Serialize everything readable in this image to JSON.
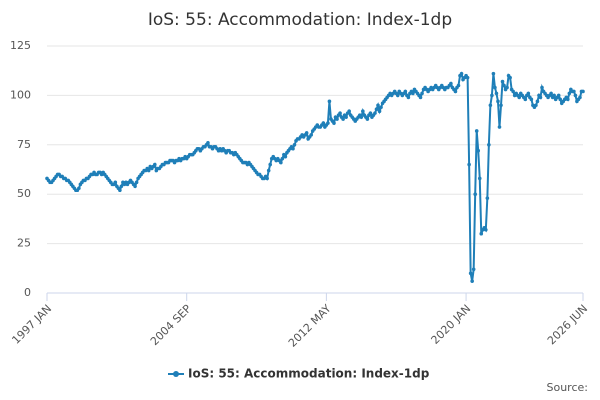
{
  "chart_data": {
    "type": "line",
    "title": "IoS: 55: Accommodation: Index-1dp",
    "categories": [
      "1997 JAN",
      null,
      null,
      null,
      null,
      null,
      null,
      null,
      null,
      null,
      null,
      null,
      null,
      null,
      null,
      null,
      null,
      null,
      null,
      null,
      null,
      null,
      null,
      null,
      null,
      null,
      null,
      null,
      null,
      null,
      null,
      null,
      null,
      null,
      null,
      null,
      null,
      null,
      null,
      null,
      null,
      null,
      null,
      null,
      null,
      null,
      null,
      null,
      null,
      null,
      null,
      null,
      null,
      null,
      null,
      null,
      null,
      null,
      null,
      null,
      null,
      null,
      null,
      null,
      null,
      null,
      null,
      null,
      null,
      null,
      null,
      null,
      null,
      null,
      null,
      null,
      null,
      null,
      null,
      null,
      null,
      null,
      null,
      null,
      null,
      null,
      null,
      null,
      null,
      null,
      null,
      null,
      "2004 SEP",
      null,
      null,
      null,
      null,
      null,
      null,
      null,
      null,
      null,
      null,
      null,
      null,
      null,
      null,
      null,
      null,
      null,
      null,
      null,
      null,
      null,
      null,
      null,
      null,
      null,
      null,
      null,
      null,
      null,
      null,
      null,
      null,
      null,
      null,
      null,
      null,
      null,
      null,
      null,
      null,
      null,
      null,
      null,
      null,
      null,
      null,
      null,
      null,
      null,
      null,
      null,
      null,
      null,
      null,
      null,
      null,
      null,
      null,
      null,
      null,
      null,
      null,
      null,
      null,
      null,
      null,
      null,
      null,
      null,
      null,
      null,
      null,
      null,
      null,
      null,
      null,
      null,
      null,
      null,
      null,
      null,
      null,
      null,
      null,
      null,
      null,
      null,
      null,
      null,
      null,
      null,
      "2012 MAY",
      null,
      null,
      null,
      null,
      null,
      null,
      null,
      null,
      null,
      null,
      null,
      null,
      null,
      null,
      null,
      null,
      null,
      null,
      null,
      null,
      null,
      null,
      null,
      null,
      null,
      null,
      null,
      null,
      null,
      null,
      null,
      null,
      null,
      null,
      null,
      null,
      null,
      null,
      null,
      null,
      null,
      null,
      null,
      null,
      null,
      null,
      null,
      null,
      null,
      null,
      null,
      null,
      null,
      null,
      null,
      null,
      null,
      null,
      null,
      null,
      null,
      null,
      null,
      null,
      null,
      null,
      null,
      null,
      null,
      null,
      null,
      null,
      null,
      null,
      null,
      null,
      null,
      null,
      null,
      null,
      null,
      null,
      null,
      null,
      null,
      null,
      null,
      null,
      null,
      null,
      null,
      "2020 JAN",
      null,
      null,
      null,
      null,
      null,
      null,
      null,
      null,
      null,
      null,
      null,
      null,
      null,
      null,
      null,
      null,
      null,
      null,
      null,
      null,
      null,
      null,
      null,
      null,
      null,
      null,
      null,
      null,
      null,
      null,
      null,
      null,
      null,
      null,
      null,
      null,
      null,
      null,
      null,
      null,
      null,
      null,
      null,
      null,
      null,
      null,
      null,
      null,
      null,
      null,
      null,
      null,
      null,
      null,
      null,
      null,
      null,
      null,
      null,
      null,
      null,
      null,
      null,
      null,
      null,
      null,
      null,
      null,
      null,
      null,
      null,
      null,
      null,
      null,
      null,
      null,
      "2026 JUN"
    ],
    "series": [
      {
        "name": "IoS: 55: Accommodation: Index-1dp",
        "color": "#1f7fb8",
        "values": [
          58,
          57,
          56,
          56,
          57,
          58,
          59,
          60,
          60,
          59,
          59,
          58,
          58,
          57,
          57,
          56,
          55,
          54,
          53,
          52,
          52,
          53,
          55,
          56,
          57,
          57,
          58,
          58,
          59,
          60,
          60,
          61,
          60,
          60,
          61,
          61,
          60,
          61,
          60,
          59,
          58,
          57,
          56,
          55,
          55,
          56,
          54,
          53,
          52,
          54,
          56,
          55,
          56,
          55,
          56,
          57,
          56,
          55,
          54,
          56,
          58,
          59,
          60,
          61,
          62,
          62,
          63,
          62,
          64,
          63,
          64,
          65,
          62,
          63,
          63,
          64,
          65,
          65,
          66,
          66,
          66,
          67,
          67,
          67,
          66,
          67,
          67,
          68,
          67,
          68,
          68,
          69,
          68,
          69,
          70,
          70,
          70,
          71,
          72,
          73,
          73,
          72,
          73,
          74,
          74,
          75,
          76,
          74,
          74,
          73,
          74,
          74,
          73,
          72,
          73,
          72,
          73,
          72,
          71,
          72,
          72,
          71,
          71,
          70,
          71,
          70,
          69,
          68,
          67,
          66,
          66,
          66,
          65,
          66,
          65,
          64,
          63,
          62,
          61,
          60,
          60,
          59,
          58,
          58,
          59,
          58,
          62,
          65,
          68,
          69,
          68,
          67,
          68,
          67,
          66,
          68,
          70,
          69,
          71,
          72,
          73,
          74,
          73,
          75,
          77,
          78,
          78,
          79,
          80,
          79,
          80,
          81,
          78,
          79,
          80,
          82,
          83,
          84,
          85,
          84,
          84,
          85,
          86,
          84,
          85,
          86,
          97,
          88,
          87,
          86,
          89,
          88,
          90,
          91,
          89,
          88,
          90,
          89,
          91,
          92,
          90,
          89,
          88,
          87,
          88,
          89,
          90,
          89,
          92,
          90,
          89,
          88,
          90,
          91,
          89,
          90,
          91,
          93,
          95,
          92,
          94,
          96,
          97,
          98,
          99,
          100,
          101,
          100,
          101,
          102,
          101,
          100,
          102,
          101,
          100,
          101,
          102,
          100,
          99,
          101,
          102,
          101,
          103,
          102,
          101,
          100,
          99,
          101,
          103,
          104,
          103,
          102,
          103,
          104,
          103,
          104,
          105,
          104,
          103,
          104,
          105,
          104,
          103,
          104,
          104,
          105,
          106,
          104,
          103,
          102,
          104,
          105,
          110,
          111,
          108,
          109,
          110,
          109,
          65,
          10,
          6,
          12,
          50,
          82,
          72,
          58,
          30,
          32,
          33,
          32,
          48,
          75,
          95,
          100,
          111,
          104,
          101,
          97,
          84,
          95,
          107,
          105,
          103,
          104,
          110,
          109,
          103,
          102,
          100,
          101,
          100,
          99,
          101,
          100,
          99,
          98,
          100,
          101,
          99,
          98,
          95,
          94,
          95,
          97,
          100,
          99,
          104,
          102,
          101,
          100,
          99,
          100,
          101,
          99,
          100,
          98,
          99,
          100,
          98,
          96,
          97,
          98,
          99,
          98,
          101,
          103,
          102,
          102,
          100,
          97,
          98,
          99,
          102,
          102
        ]
      }
    ],
    "ylim": [
      0,
      125
    ],
    "yticks": [
      0,
      25,
      50,
      75,
      100,
      125
    ],
    "grid": true,
    "legend": "bottom",
    "source_label": "Source:"
  }
}
